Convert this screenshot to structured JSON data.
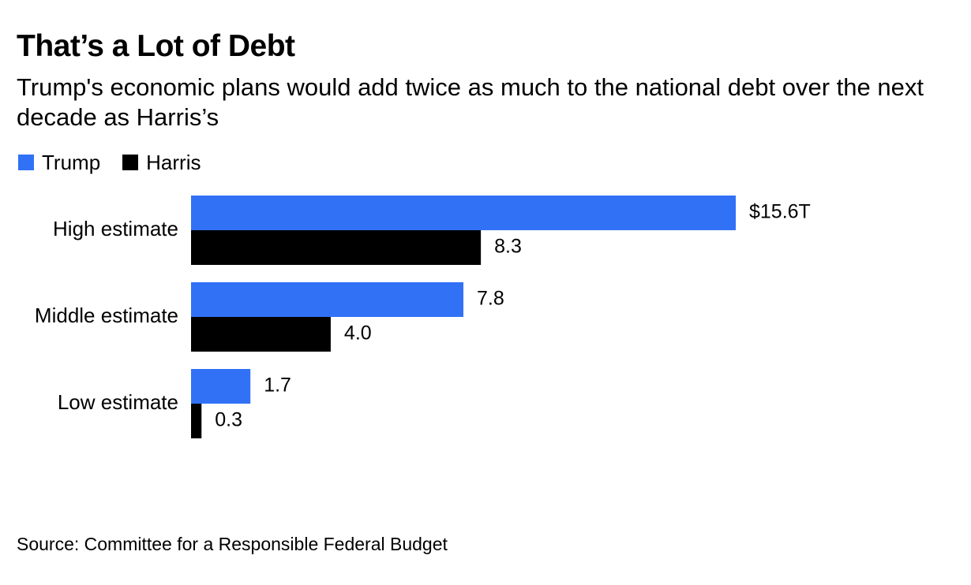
{
  "chart_data": {
    "type": "bar",
    "orientation": "horizontal",
    "title": "That’s a Lot of Debt",
    "subtitle": "Trump's economic plans would add twice as much to the national debt over the next decade as Harris’s",
    "categories": [
      "High estimate",
      "Middle estimate",
      "Low estimate"
    ],
    "series": [
      {
        "name": "Trump",
        "color": "#3171f6",
        "values": [
          15.6,
          7.8,
          1.7
        ],
        "labels": [
          "$15.6T",
          "7.8",
          "1.7"
        ]
      },
      {
        "name": "Harris",
        "color": "#000000",
        "values": [
          8.3,
          4.0,
          0.3
        ],
        "labels": [
          "8.3",
          "4.0",
          "0.3"
        ]
      }
    ],
    "xlim": [
      0,
      15.6
    ],
    "grid": false,
    "legend_position": "top-left",
    "source": "Source: Committee for a Responsible Federal Budget"
  }
}
